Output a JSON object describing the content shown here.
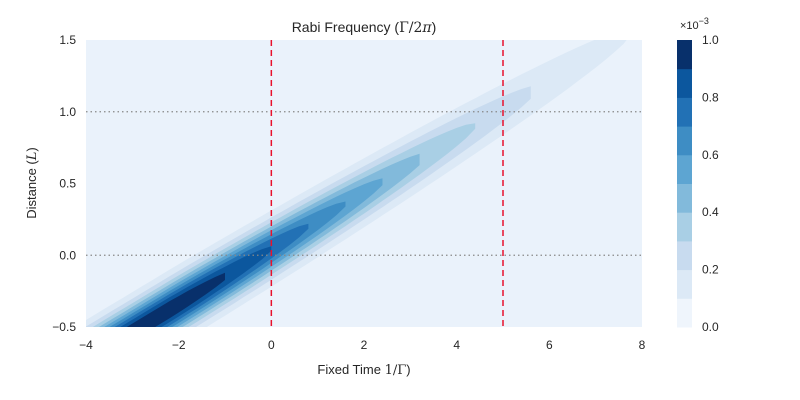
{
  "chart_data": {
    "type": "heatmap",
    "subtype": "filled-contour",
    "title": {
      "prefix": "Rabi Frequency (",
      "math_upright": "Γ",
      "math_rest": "/2",
      "math_italic": "π",
      "suffix": ")"
    },
    "xlabel": {
      "prefix": "Fixed Time ",
      "math_upright": "1/Γ",
      "suffix": ")"
    },
    "ylabel": {
      "prefix": "Distance (",
      "math_italic": "L",
      "suffix": ")"
    },
    "xlim": [
      -4,
      8
    ],
    "ylim": [
      -0.5,
      1.5
    ],
    "xticks": [
      "−4",
      "−2",
      "0",
      "2",
      "4",
      "6",
      "8"
    ],
    "xtick_values": [
      -4,
      -2,
      0,
      2,
      4,
      6,
      8
    ],
    "yticks": [
      "−0.5",
      "0.0",
      "0.5",
      "1.0",
      "1.5"
    ],
    "ytick_values": [
      -0.5,
      0.0,
      0.5,
      1.0,
      1.5
    ],
    "grid": false,
    "band": {
      "description_points": [
        [
          -4,
          -0.73
        ],
        [
          8,
          1.6
        ]
      ],
      "peak_value": 0.001
    },
    "contour_levels": [
      0.0,
      0.1,
      0.2,
      0.3,
      0.4,
      0.5,
      0.6,
      0.7,
      0.8,
      0.9,
      1.0
    ],
    "contour_colors": [
      "#eff5fc",
      "#dce9f6",
      "#c8dbef",
      "#a9cfe5",
      "#82badb",
      "#5da5d2",
      "#3e8dc4",
      "#2271b5",
      "#0c579e",
      "#08306b"
    ],
    "vlines": {
      "x": [
        0,
        5
      ],
      "color": "#e8112d",
      "style": "dashed"
    },
    "hlines": {
      "y": [
        0.0,
        1.0
      ],
      "color": "#888888",
      "style": "dotted"
    },
    "colorbar": {
      "ticks": [
        "0.0",
        "0.2",
        "0.4",
        "0.6",
        "0.8",
        "1.0"
      ],
      "tick_values": [
        0.0,
        0.2,
        0.4,
        0.6,
        0.8,
        1.0
      ],
      "offset_base": "×10",
      "offset_exp": "−3"
    }
  }
}
